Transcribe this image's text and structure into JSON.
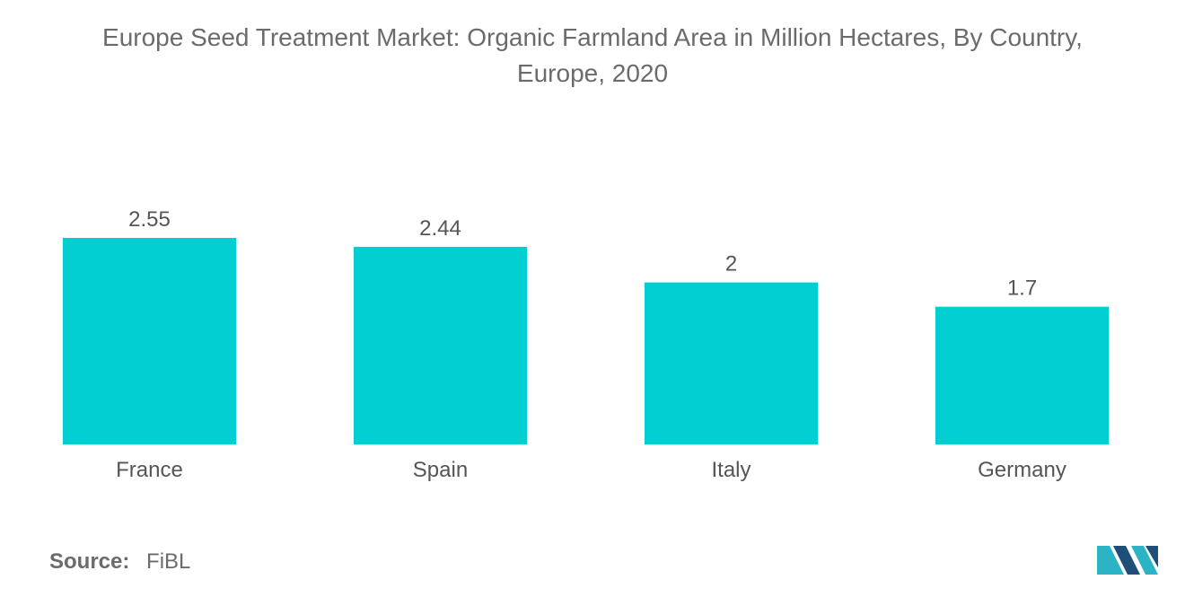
{
  "title_lines": [
    "Europe Seed Treatment Market: Organic Farmland Area in Million Hectares, By Country,",
    "Europe, 2020"
  ],
  "source": {
    "label": "Source:",
    "value": "FiBL"
  },
  "logo_icon": "mordor-intelligence-logo-icon",
  "colors": {
    "bar": "#00ced1",
    "text": "#555555",
    "title": "#6b6b6b",
    "logo_dark": "#1f4e79",
    "logo_light": "#2bb5c4"
  },
  "chart_data": {
    "type": "bar",
    "title": "Europe Seed Treatment Market: Organic Farmland Area in Million Hectares, By Country, Europe, 2020",
    "categories": [
      "France",
      "Spain",
      "Italy",
      "Germany"
    ],
    "values": [
      2.55,
      2.44,
      2,
      1.7
    ],
    "data_labels": [
      "2.55",
      "2.44",
      "2",
      "1.7"
    ],
    "xlabel": "",
    "ylabel": "",
    "ylim": [
      0,
      2.55
    ],
    "grid": false,
    "legend": "none"
  }
}
